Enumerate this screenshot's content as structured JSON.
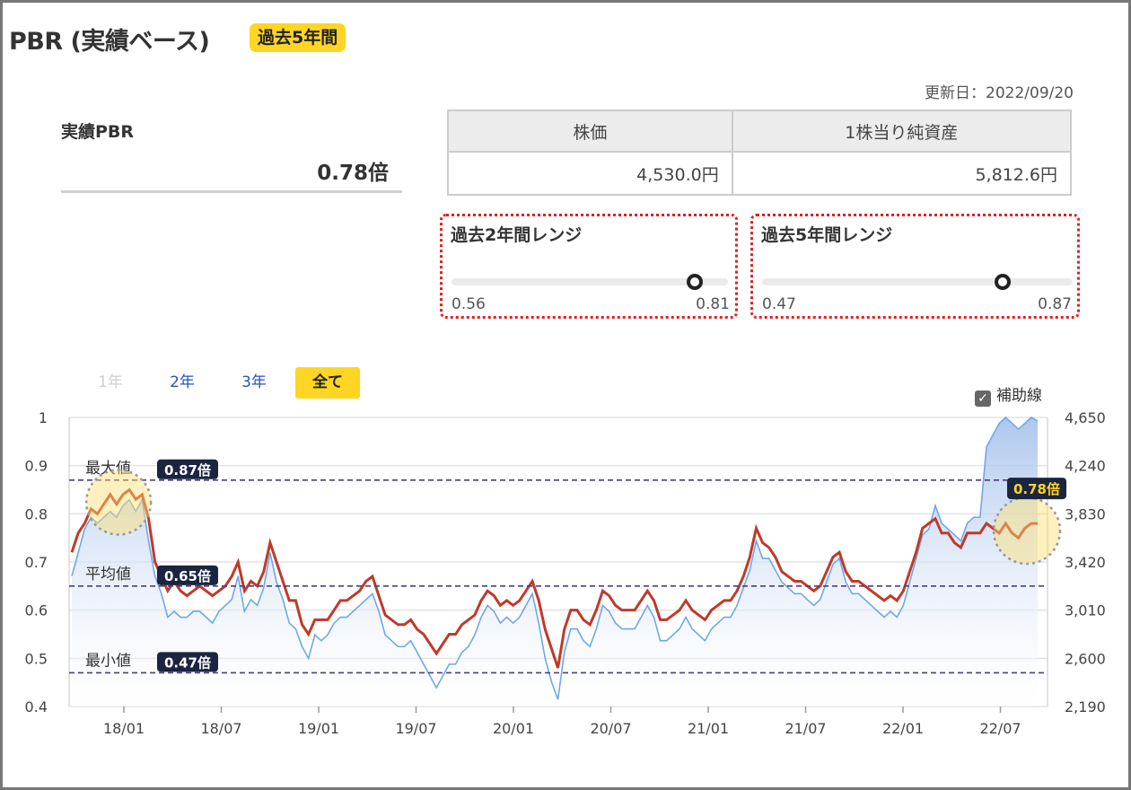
{
  "header": {
    "title": "PBR (実績ベース)",
    "badge": "過去5年間"
  },
  "updated": "更新日：2022/09/20",
  "summary": {
    "label": "実績PBR",
    "value": "0.78倍"
  },
  "price_table": {
    "headers": [
      "株価",
      "1株当り純資産"
    ],
    "values": [
      "4,530.0円",
      "5,812.6円"
    ]
  },
  "ranges": [
    {
      "title": "過去2年間レンジ",
      "low": "0.56",
      "high": "0.81",
      "current": 0.78
    },
    {
      "title": "過去5年間レンジ",
      "low": "0.47",
      "high": "0.87",
      "current": 0.78
    }
  ],
  "tabs": [
    {
      "label": "1年",
      "state": "disabled"
    },
    {
      "label": "2年",
      "state": "normal"
    },
    {
      "label": "3年",
      "state": "normal"
    },
    {
      "label": "全て",
      "state": "active"
    }
  ],
  "aux_line": {
    "label": "補助線",
    "checked": true,
    "check_icon": "checkmark-icon"
  },
  "colors": {
    "pbr_line": "#c0392b",
    "price_line": "#6fa8e8",
    "price_fill": "#a9c4ec",
    "accent": "#ffd524",
    "ref_badge": "#1b2540"
  },
  "chart_data": {
    "type": "line",
    "x_ticks": [
      "18/01",
      "18/07",
      "19/01",
      "19/07",
      "20/01",
      "20/07",
      "21/01",
      "21/07",
      "22/01",
      "22/07"
    ],
    "y_left": {
      "ticks": [
        "1",
        "0.9",
        "0.8",
        "0.7",
        "0.6",
        "0.5",
        "0.4"
      ],
      "range": [
        0.4,
        1.0
      ]
    },
    "y_right": {
      "ticks": [
        "4,650",
        "4,240",
        "3,830",
        "3,420",
        "3,010",
        "2,600",
        "2,190"
      ],
      "range": [
        2190,
        4650
      ]
    },
    "ref_lines": [
      {
        "label": "最大値",
        "value": 0.87,
        "badge": "0.87倍"
      },
      {
        "label": "平均値",
        "value": 0.65,
        "badge": "0.65倍"
      },
      {
        "label": "最小値",
        "value": 0.47,
        "badge": "0.47倍"
      }
    ],
    "current_badge": "0.78倍",
    "grid": true,
    "series": [
      {
        "axis": "left",
        "values": [
          0.72,
          0.76,
          0.78,
          0.81,
          0.8,
          0.82,
          0.84,
          0.82,
          0.84,
          0.85,
          0.83,
          0.84,
          0.79,
          0.7,
          0.67,
          0.64,
          0.66,
          0.64,
          0.63,
          0.64,
          0.65,
          0.64,
          0.63,
          0.64,
          0.65,
          0.67,
          0.7,
          0.64,
          0.66,
          0.65,
          0.68,
          0.74,
          0.7,
          0.66,
          0.62,
          0.62,
          0.57,
          0.55,
          0.58,
          0.58,
          0.58,
          0.6,
          0.62,
          0.62,
          0.63,
          0.64,
          0.66,
          0.67,
          0.63,
          0.59,
          0.58,
          0.57,
          0.57,
          0.58,
          0.56,
          0.55,
          0.53,
          0.51,
          0.53,
          0.55,
          0.55,
          0.57,
          0.58,
          0.59,
          0.62,
          0.64,
          0.63,
          0.61,
          0.62,
          0.61,
          0.62,
          0.64,
          0.66,
          0.62,
          0.56,
          0.52,
          0.48,
          0.56,
          0.6,
          0.6,
          0.58,
          0.57,
          0.6,
          0.64,
          0.63,
          0.61,
          0.6,
          0.6,
          0.6,
          0.62,
          0.64,
          0.62,
          0.58,
          0.58,
          0.59,
          0.6,
          0.62,
          0.6,
          0.59,
          0.58,
          0.6,
          0.61,
          0.62,
          0.62,
          0.64,
          0.67,
          0.71,
          0.77,
          0.74,
          0.73,
          0.71,
          0.68,
          0.67,
          0.66,
          0.66,
          0.65,
          0.64,
          0.65,
          0.68,
          0.71,
          0.72,
          0.68,
          0.66,
          0.66,
          0.65,
          0.64,
          0.63,
          0.62,
          0.63,
          0.62,
          0.64,
          0.68,
          0.72,
          0.77,
          0.78,
          0.79,
          0.76,
          0.76,
          0.74,
          0.73,
          0.76,
          0.76,
          0.76,
          0.78,
          0.77,
          0.76,
          0.78,
          0.76,
          0.75,
          0.77,
          0.78,
          0.78
        ]
      },
      {
        "axis": "right",
        "values": [
          3300,
          3500,
          3700,
          3800,
          3750,
          3800,
          3850,
          3800,
          3900,
          3950,
          3850,
          3950,
          3600,
          3300,
          3150,
          2950,
          3000,
          2950,
          2950,
          3000,
          3000,
          2950,
          2900,
          3000,
          3050,
          3100,
          3300,
          3000,
          3100,
          3050,
          3200,
          3500,
          3250,
          3100,
          2900,
          2850,
          2700,
          2600,
          2800,
          2750,
          2800,
          2900,
          2950,
          2950,
          3000,
          3050,
          3100,
          3150,
          3000,
          2800,
          2750,
          2700,
          2700,
          2750,
          2650,
          2550,
          2450,
          2350,
          2450,
          2550,
          2550,
          2650,
          2700,
          2800,
          2950,
          3050,
          3000,
          2900,
          2950,
          2900,
          2950,
          3050,
          3150,
          2900,
          2600,
          2400,
          2250,
          2650,
          2850,
          2850,
          2750,
          2700,
          2850,
          3050,
          3000,
          2900,
          2850,
          2850,
          2850,
          2950,
          3050,
          2950,
          2750,
          2750,
          2800,
          2850,
          2950,
          2850,
          2800,
          2750,
          2850,
          2900,
          2950,
          2950,
          3050,
          3200,
          3350,
          3600,
          3450,
          3450,
          3350,
          3250,
          3200,
          3150,
          3150,
          3100,
          3050,
          3100,
          3250,
          3400,
          3450,
          3250,
          3150,
          3150,
          3100,
          3050,
          3000,
          2950,
          3000,
          2950,
          3050,
          3250,
          3450,
          3650,
          3700,
          3900,
          3750,
          3700,
          3650,
          3600,
          3750,
          3800,
          3800,
          4400,
          4500,
          4600,
          4650,
          4600,
          4550,
          4600,
          4650,
          4620
        ]
      }
    ]
  }
}
